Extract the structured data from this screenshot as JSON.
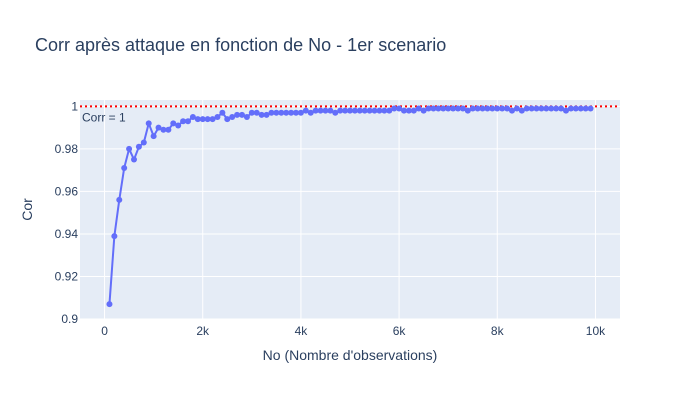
{
  "chart_data": {
    "type": "line",
    "title": "Corr après attaque en fonction de No - 1er scenario",
    "xlabel": "No (Nombre d'observations)",
    "ylabel": "Cor",
    "xlim": [
      -500,
      10500
    ],
    "ylim": [
      0.9,
      1.003
    ],
    "x_ticks": [
      0,
      2000,
      4000,
      6000,
      8000,
      10000
    ],
    "x_tick_labels": [
      "0",
      "2k",
      "4k",
      "6k",
      "8k",
      "10k"
    ],
    "y_ticks": [
      0.9,
      0.92,
      0.94,
      0.96,
      0.98,
      1.0
    ],
    "y_tick_labels": [
      "0.9",
      "0.92",
      "0.94",
      "0.96",
      "0.98",
      "1"
    ],
    "grid": true,
    "reference_line": {
      "y": 1.0,
      "label": "Corr = 1",
      "color": "#ff0000",
      "style": "dotted"
    },
    "series": [
      {
        "color": "#636efa",
        "mode": "lines+markers",
        "x": [
          100,
          200,
          300,
          400,
          500,
          600,
          700,
          800,
          900,
          1000,
          1100,
          1200,
          1300,
          1400,
          1500,
          1600,
          1700,
          1800,
          1900,
          2000,
          2100,
          2200,
          2300,
          2400,
          2500,
          2600,
          2700,
          2800,
          2900,
          3000,
          3100,
          3200,
          3300,
          3400,
          3500,
          3600,
          3700,
          3800,
          3900,
          4000,
          4100,
          4200,
          4300,
          4400,
          4500,
          4600,
          4700,
          4800,
          4900,
          5000,
          5100,
          5200,
          5300,
          5400,
          5500,
          5600,
          5700,
          5800,
          5900,
          6000,
          6100,
          6200,
          6300,
          6400,
          6500,
          6600,
          6700,
          6800,
          6900,
          7000,
          7100,
          7200,
          7300,
          7400,
          7500,
          7600,
          7700,
          7800,
          7900,
          8000,
          8100,
          8200,
          8300,
          8400,
          8500,
          8600,
          8700,
          8800,
          8900,
          9000,
          9100,
          9200,
          9300,
          9400,
          9500,
          9600,
          9700,
          9800,
          9900
        ],
        "y": [
          0.907,
          0.939,
          0.956,
          0.971,
          0.98,
          0.975,
          0.981,
          0.983,
          0.992,
          0.986,
          0.99,
          0.989,
          0.989,
          0.992,
          0.991,
          0.993,
          0.993,
          0.995,
          0.994,
          0.994,
          0.994,
          0.994,
          0.995,
          0.997,
          0.994,
          0.995,
          0.996,
          0.996,
          0.995,
          0.997,
          0.997,
          0.996,
          0.996,
          0.997,
          0.997,
          0.997,
          0.997,
          0.997,
          0.997,
          0.997,
          0.998,
          0.997,
          0.998,
          0.998,
          0.998,
          0.998,
          0.997,
          0.998,
          0.998,
          0.998,
          0.998,
          0.998,
          0.998,
          0.998,
          0.998,
          0.998,
          0.998,
          0.998,
          0.999,
          0.999,
          0.998,
          0.998,
          0.998,
          0.999,
          0.998,
          0.999,
          0.999,
          0.999,
          0.999,
          0.999,
          0.999,
          0.999,
          0.999,
          0.998,
          0.999,
          0.999,
          0.999,
          0.999,
          0.999,
          0.999,
          0.999,
          0.999,
          0.998,
          0.999,
          0.998,
          0.999,
          0.999,
          0.999,
          0.999,
          0.999,
          0.999,
          0.999,
          0.999,
          0.998,
          0.999,
          0.999,
          0.999,
          0.999,
          0.999
        ]
      }
    ]
  }
}
